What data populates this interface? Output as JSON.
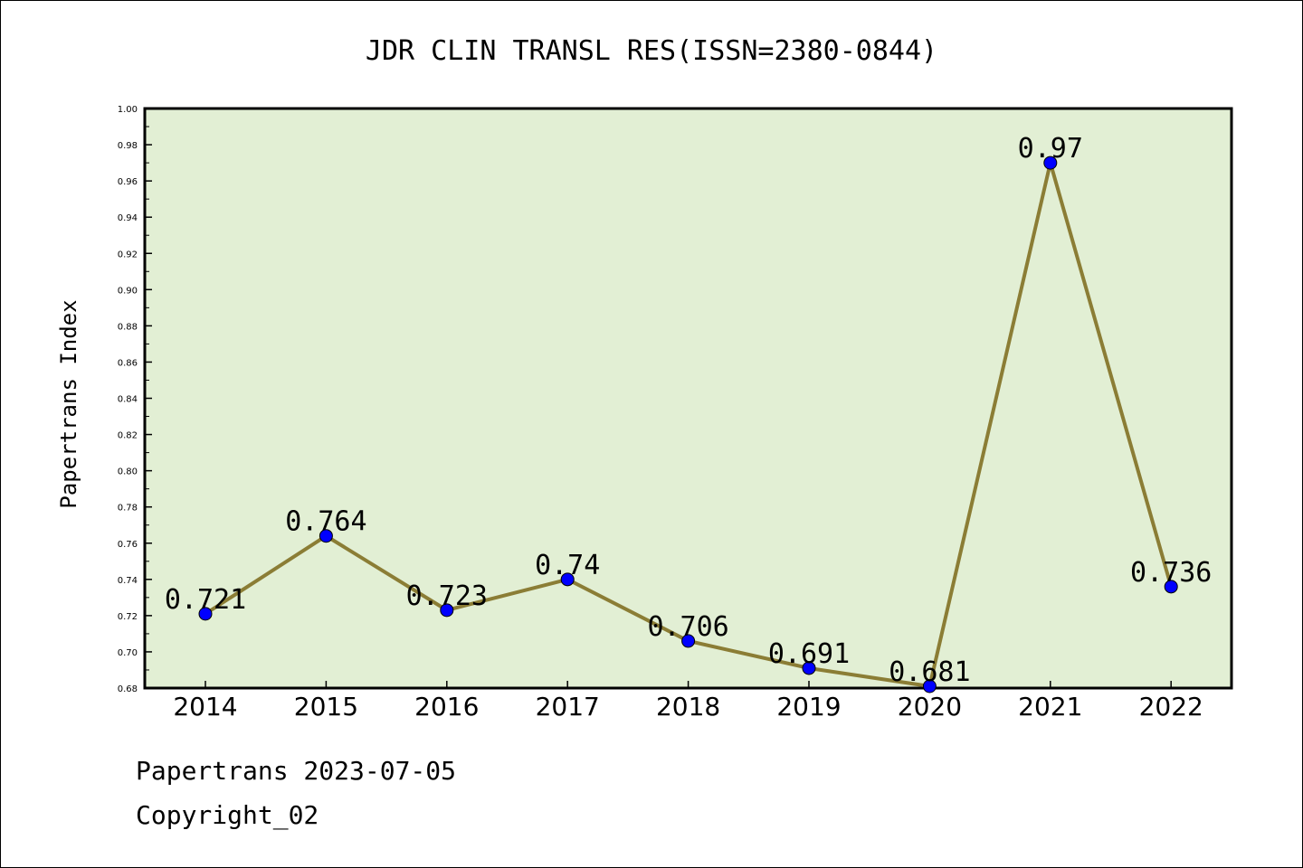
{
  "chart_data": {
    "type": "line",
    "title": "JDR CLIN TRANSL RES(ISSN=2380-0844)",
    "xlabel": "",
    "ylabel": "Papertrans Index",
    "categories": [
      "2014",
      "2015",
      "2016",
      "2017",
      "2018",
      "2019",
      "2020",
      "2021",
      "2022"
    ],
    "values": [
      0.721,
      0.764,
      0.723,
      0.74,
      0.706,
      0.691,
      0.681,
      0.97,
      0.736
    ],
    "data_labels": [
      "0.721",
      "0.764",
      "0.723",
      "0.74",
      "0.706",
      "0.691",
      "0.681",
      "0.97",
      "0.736"
    ],
    "ylim": [
      0.68,
      1.0
    ],
    "yticks": [
      "0.68",
      "0.70",
      "0.72",
      "0.74",
      "0.76",
      "0.78",
      "0.80",
      "0.82",
      "0.84",
      "0.86",
      "0.88",
      "0.90",
      "0.92",
      "0.94",
      "0.96",
      "0.98",
      "1.00"
    ],
    "grid": false,
    "colors": {
      "plot_background": "#e2efd4",
      "line": "#8b7d35",
      "marker": "#0000ff"
    }
  },
  "footer": {
    "date_text": "Papertrans 2023-07-05",
    "copyright_text": "Copyright_02"
  }
}
